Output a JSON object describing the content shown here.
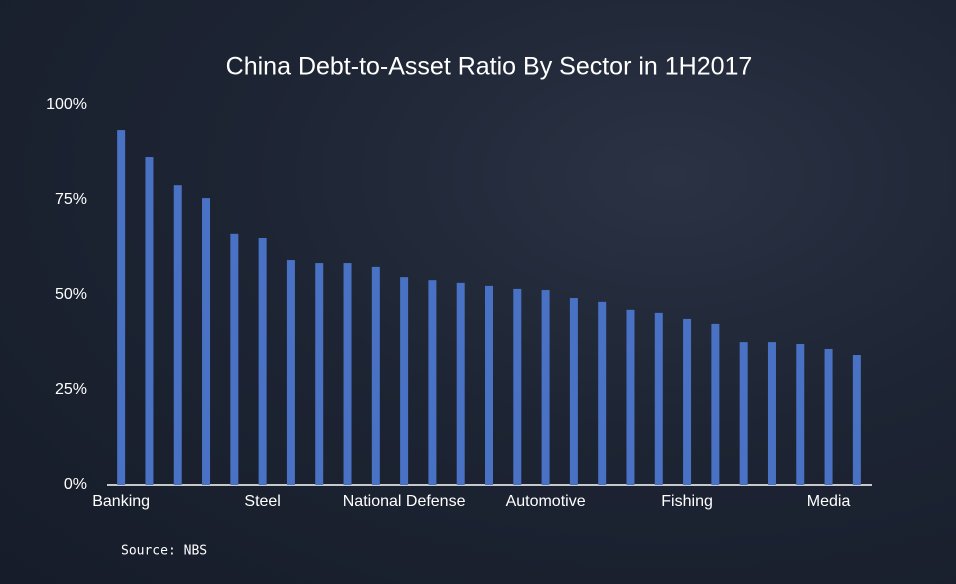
{
  "chart_data": {
    "type": "bar",
    "title": "China Debt-to-Asset Ratio By Sector in 1H2017",
    "source": "Source: NBS",
    "categories": [
      "Banking",
      null,
      null,
      null,
      null,
      "Steel",
      null,
      null,
      null,
      null,
      "National Defense",
      null,
      null,
      null,
      null,
      "Automotive",
      null,
      null,
      null,
      null,
      "Fishing",
      null,
      null,
      null,
      null,
      "Media",
      null
    ],
    "values": [
      93.4,
      86.3,
      78.9,
      75.5,
      66.1,
      65.0,
      59.2,
      58.4,
      58.4,
      57.4,
      54.7,
      53.9,
      53.2,
      52.4,
      51.6,
      51.3,
      49.2,
      48.2,
      46.1,
      45.3,
      43.7,
      42.4,
      37.6,
      37.6,
      37.1,
      35.8,
      34.2
    ],
    "color": "#4a72c4",
    "ylim": [
      0,
      100
    ],
    "yticks": [
      {
        "value": 0,
        "label": "0%"
      },
      {
        "value": 25,
        "label": "25%"
      },
      {
        "value": 50,
        "label": "50%"
      },
      {
        "value": 75,
        "label": "75%"
      },
      {
        "value": 100,
        "label": "100%"
      }
    ],
    "grid": false
  }
}
